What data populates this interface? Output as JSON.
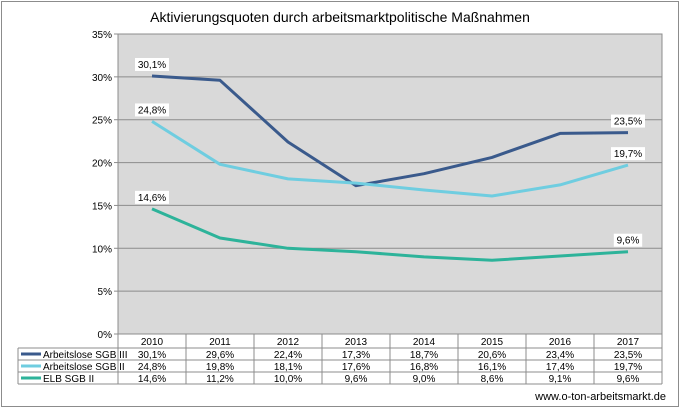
{
  "chart_data": {
    "type": "line",
    "title": "Aktivierungsquoten durch arbeitsmarktpolitische Maßnahmen",
    "categories": [
      "2010",
      "2011",
      "2012",
      "2013",
      "2014",
      "2015",
      "2016",
      "2017"
    ],
    "ylim": [
      0,
      35
    ],
    "y_ticks": [
      "0%",
      "5%",
      "10%",
      "15%",
      "20%",
      "25%",
      "30%",
      "35%"
    ],
    "grid": true,
    "legend": "data-table-below",
    "series": [
      {
        "name": "Arbeitslose SGB III",
        "color": "#3a5a8c",
        "values": [
          30.1,
          29.6,
          22.4,
          17.3,
          18.7,
          20.6,
          23.4,
          23.5
        ],
        "table_values": [
          "30,1%",
          "29,6%",
          "22,4%",
          "17,3%",
          "18,7%",
          "20,6%",
          "23,4%",
          "23,5%"
        ],
        "data_labels": [
          {
            "index": 0,
            "text": "30,1%"
          },
          {
            "index": 7,
            "text": "23,5%"
          }
        ]
      },
      {
        "name": "Arbeitslose SGB II",
        "color": "#6fcde0",
        "values": [
          24.8,
          19.8,
          18.1,
          17.6,
          16.8,
          16.1,
          17.4,
          19.7
        ],
        "table_values": [
          "24,8%",
          "19,8%",
          "18,1%",
          "17,6%",
          "16,8%",
          "16,1%",
          "17,4%",
          "19,7%"
        ],
        "data_labels": [
          {
            "index": 0,
            "text": "24,8%"
          },
          {
            "index": 7,
            "text": "19,7%"
          }
        ]
      },
      {
        "name": "ELB SGB II",
        "color": "#2db39a",
        "values": [
          14.6,
          11.2,
          10.0,
          9.6,
          9.0,
          8.6,
          9.1,
          9.6
        ],
        "table_values": [
          "14,6%",
          "11,2%",
          "10,0%",
          "9,6%",
          "9,0%",
          "8,6%",
          "9,1%",
          "9,6%"
        ],
        "data_labels": [
          {
            "index": 0,
            "text": "14,6%"
          },
          {
            "index": 7,
            "text": "9,6%"
          }
        ]
      }
    ]
  },
  "colors": {
    "plot_background": "#d9d9d9",
    "gridline": "#8c8c8c",
    "frame": "#8c8c8c"
  },
  "footer": "www.o-ton-arbeitsmarkt.de"
}
